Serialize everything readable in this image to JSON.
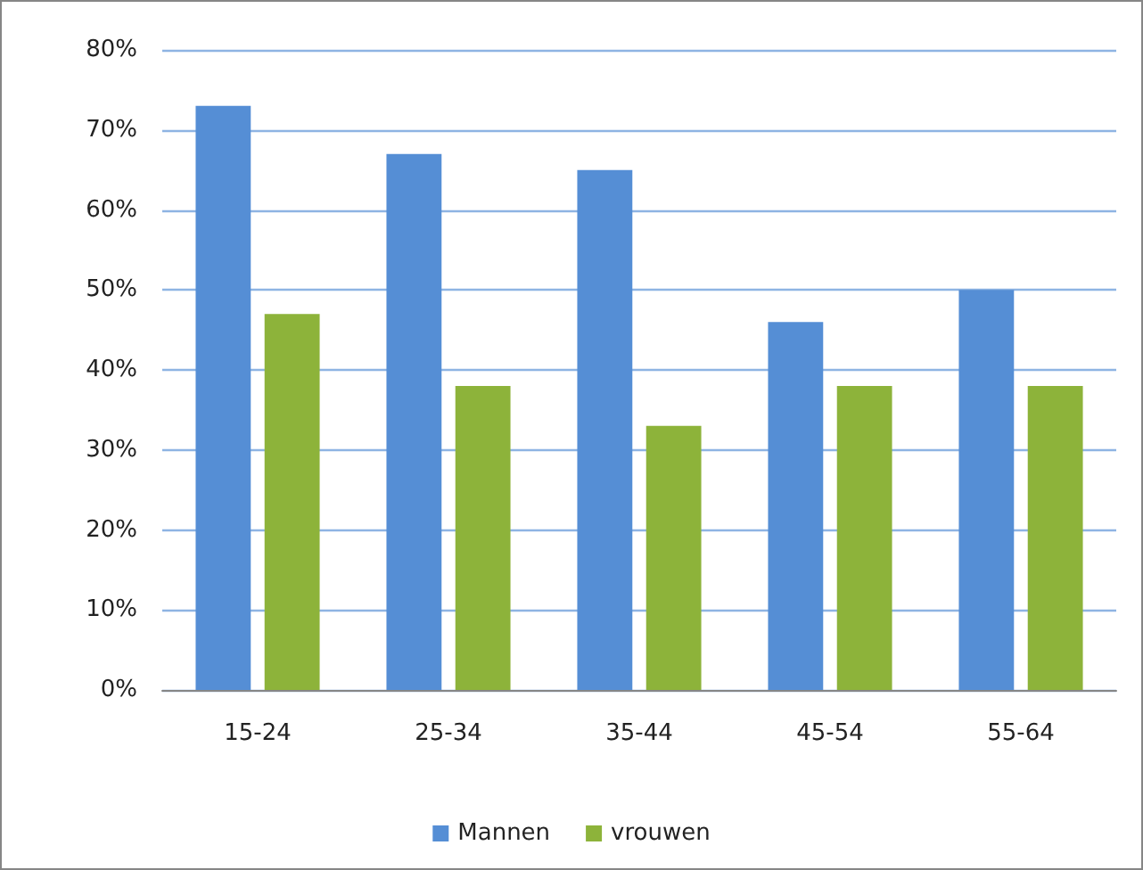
{
  "chart_data": {
    "type": "bar",
    "categories": [
      "15-24",
      "25-34",
      "35-44",
      "45-54",
      "55-64"
    ],
    "series": [
      {
        "name": "Mannen",
        "color": "#558ed5",
        "values": [
          73,
          67,
          65,
          46,
          50
        ]
      },
      {
        "name": "vrouwen",
        "color": "#8db33a",
        "values": [
          47,
          38,
          33,
          38,
          38
        ]
      }
    ],
    "ylim": [
      0,
      80
    ],
    "yticks": [
      {
        "value": 0,
        "label": "0%"
      },
      {
        "value": 10,
        "label": "10%"
      },
      {
        "value": 20,
        "label": "20%"
      },
      {
        "value": 30,
        "label": "30%"
      },
      {
        "value": 40,
        "label": "40%"
      },
      {
        "value": 50,
        "label": "50%"
      },
      {
        "value": 60,
        "label": "60%"
      },
      {
        "value": 70,
        "label": "70%"
      },
      {
        "value": 80,
        "label": "80%"
      }
    ],
    "grid": "y",
    "legend": "bottom"
  }
}
